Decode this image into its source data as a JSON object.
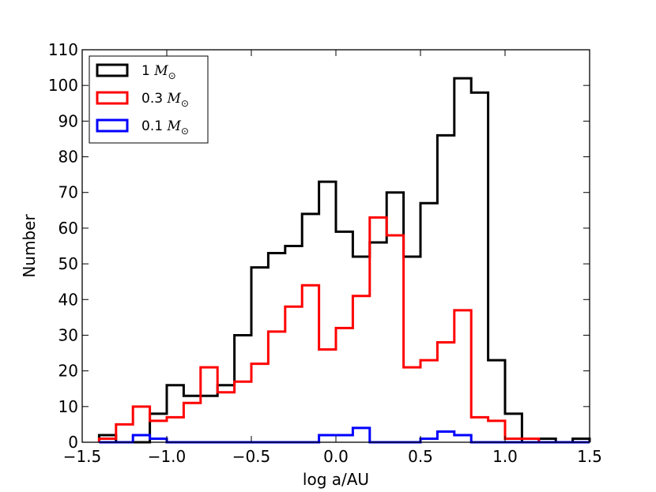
{
  "chart_data": {
    "type": "histogram",
    "xlabel": "log a/AU",
    "ylabel": "Number",
    "xlim": [
      -1.5,
      1.5
    ],
    "ylim": [
      0,
      110
    ],
    "x_ticks": [
      -1.5,
      -1.0,
      -0.5,
      0.0,
      0.5,
      1.0,
      1.5
    ],
    "x_tick_labels": [
      "−1.5",
      "−1.0",
      "−0.5",
      "0.0",
      "0.5",
      "1.0",
      "1.5"
    ],
    "y_ticks": [
      0,
      10,
      20,
      30,
      40,
      50,
      60,
      70,
      80,
      90,
      100,
      110
    ],
    "y_tick_labels": [
      "0",
      "10",
      "20",
      "30",
      "40",
      "50",
      "60",
      "70",
      "80",
      "90",
      "100",
      "110"
    ],
    "legend_position": "top-left",
    "bin_edges": [
      -1.4,
      -1.3,
      -1.2,
      -1.1,
      -1.0,
      -0.9,
      -0.8,
      -0.7,
      -0.6,
      -0.5,
      -0.4,
      -0.3,
      -0.2,
      -0.1,
      0.0,
      0.1,
      0.2,
      0.3,
      0.4,
      0.5,
      0.6,
      0.7,
      0.8,
      0.9,
      1.0,
      1.1,
      1.2,
      1.3,
      1.4,
      1.5
    ],
    "series": [
      {
        "name": "1",
        "legend_math": "M",
        "legend_sub": "⊙",
        "color": "#000000",
        "values": [
          2,
          0,
          0,
          8,
          16,
          13,
          13,
          16,
          30,
          49,
          53,
          55,
          64,
          73,
          59,
          52,
          56,
          70,
          52,
          67,
          86,
          102,
          98,
          23,
          8,
          0,
          1,
          0,
          1
        ]
      },
      {
        "name": "0.3",
        "legend_math": "M",
        "legend_sub": "⊙",
        "color": "#ff0000",
        "values": [
          1,
          5,
          10,
          6,
          7,
          11,
          21,
          14,
          17,
          22,
          31,
          38,
          44,
          26,
          32,
          41,
          63,
          58,
          21,
          23,
          28,
          37,
          7,
          6,
          1,
          1,
          0,
          0,
          0
        ]
      },
      {
        "name": "0.1",
        "legend_math": "M",
        "legend_sub": "⊙",
        "color": "#0000ff",
        "values": [
          0,
          0,
          2,
          1,
          0,
          0,
          0,
          0,
          0,
          0,
          0,
          0,
          0,
          2,
          2,
          4,
          0,
          0,
          0,
          1,
          3,
          2,
          0,
          0,
          0,
          0,
          0,
          0,
          0
        ]
      }
    ]
  }
}
